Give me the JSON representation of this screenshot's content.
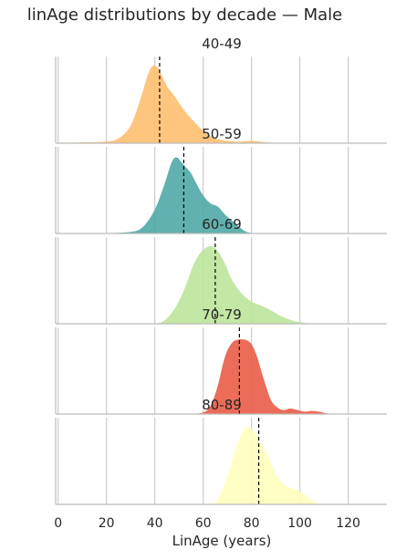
{
  "chart_data": {
    "type": "area",
    "title": "linAge distributions by decade — Male",
    "xlabel": "LinAge (years)",
    "ylabel": "",
    "xlim": [
      -1,
      136
    ],
    "xticks": [
      0,
      20,
      40,
      60,
      80,
      100,
      120
    ],
    "grid": "vertical",
    "panels": [
      {
        "label": "40-49",
        "color": "#fdbf6f",
        "mean": 42,
        "x": [
          0,
          10,
          20,
          25,
          30,
          34,
          37,
          39,
          41,
          43,
          45,
          48,
          52,
          56,
          60,
          65,
          70,
          75,
          80,
          85,
          90,
          95
        ],
        "density": [
          0.005,
          0.01,
          0.02,
          0.06,
          0.22,
          0.55,
          0.85,
          0.97,
          0.96,
          0.85,
          0.72,
          0.6,
          0.42,
          0.28,
          0.16,
          0.06,
          0.03,
          0.02,
          0.03,
          0.015,
          0.005,
          0
        ]
      },
      {
        "label": "50-59",
        "color": "#4fa9a6",
        "mean": 52,
        "x": [
          10,
          20,
          30,
          35,
          40,
          44,
          47,
          49,
          51,
          53,
          55,
          57,
          60,
          63,
          66,
          69,
          72,
          75,
          78,
          82
        ],
        "density": [
          0,
          0.005,
          0.02,
          0.08,
          0.3,
          0.62,
          0.9,
          0.96,
          0.9,
          0.83,
          0.76,
          0.64,
          0.48,
          0.38,
          0.34,
          0.24,
          0.16,
          0.08,
          0.02,
          0
        ]
      },
      {
        "label": "60-69",
        "color": "#bde49b",
        "mean": 65,
        "x": [
          40,
          44,
          48,
          52,
          56,
          59,
          62,
          64,
          66,
          69,
          72,
          76,
          80,
          84,
          88,
          92,
          96,
          100,
          105
        ],
        "density": [
          0,
          0.04,
          0.18,
          0.42,
          0.74,
          0.9,
          0.97,
          0.97,
          0.92,
          0.76,
          0.55,
          0.38,
          0.28,
          0.23,
          0.17,
          0.1,
          0.05,
          0.02,
          0
        ]
      },
      {
        "label": "70-79",
        "color": "#e95c47",
        "mean": 75,
        "x": [
          55,
          60,
          63,
          66,
          69,
          72,
          75,
          78,
          80,
          82,
          84,
          86,
          88,
          90,
          93,
          96,
          99,
          102,
          105,
          108,
          111,
          115
        ],
        "density": [
          0,
          0.02,
          0.1,
          0.35,
          0.72,
          0.9,
          0.94,
          0.93,
          0.88,
          0.75,
          0.55,
          0.35,
          0.18,
          0.1,
          0.05,
          0.07,
          0.05,
          0.03,
          0.04,
          0.03,
          0.01,
          0
        ]
      },
      {
        "label": "80-89",
        "color": "#ffffbf",
        "mean": 83,
        "x": [
          63,
          66,
          70,
          74,
          77,
          79,
          81,
          83,
          85,
          87,
          89,
          91,
          93,
          95,
          97,
          99,
          101,
          103,
          105,
          108
        ],
        "density": [
          0,
          0.06,
          0.35,
          0.75,
          0.95,
          0.97,
          0.92,
          0.82,
          0.72,
          0.6,
          0.45,
          0.33,
          0.26,
          0.22,
          0.2,
          0.18,
          0.14,
          0.1,
          0.05,
          0
        ]
      }
    ]
  }
}
